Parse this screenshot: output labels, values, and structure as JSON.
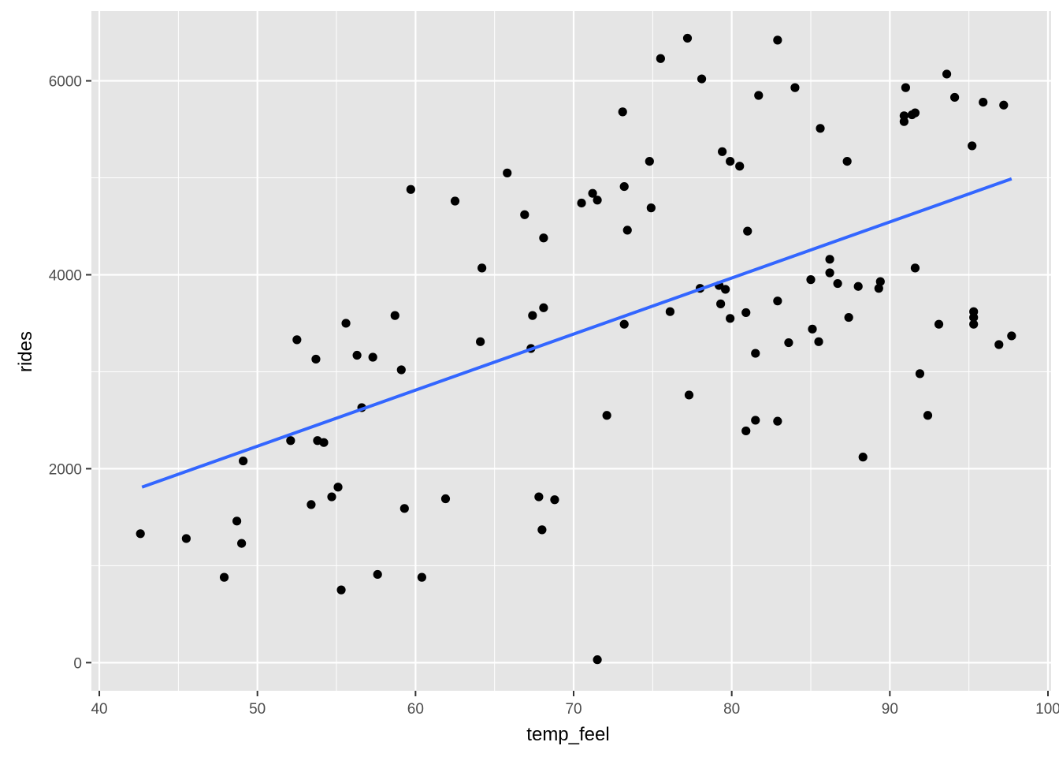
{
  "chart_data": {
    "type": "scatter",
    "title": "",
    "xlabel": "temp_feel",
    "ylabel": "rides",
    "xlim": [
      39.5,
      100.2
    ],
    "ylim": [
      -290,
      6720
    ],
    "x_ticks": [
      40,
      50,
      60,
      70,
      80,
      90,
      100
    ],
    "y_ticks": [
      0,
      2000,
      4000,
      6000
    ],
    "grid": true,
    "legend": "none",
    "colors": {
      "panel": "#E5E5E5",
      "grid": "#FFFFFF",
      "points": "#000000",
      "trend": "#3366FF",
      "tick_text": "#4D4D4D"
    },
    "trend_line": {
      "method": "linear",
      "x": [
        42.7,
        97.7
      ],
      "y": [
        1810,
        4990
      ]
    },
    "points": [
      {
        "x": 42.6,
        "y": 1330
      },
      {
        "x": 45.5,
        "y": 1280
      },
      {
        "x": 47.9,
        "y": 880
      },
      {
        "x": 48.7,
        "y": 1460
      },
      {
        "x": 49.0,
        "y": 1230
      },
      {
        "x": 49.1,
        "y": 2080
      },
      {
        "x": 52.1,
        "y": 2290
      },
      {
        "x": 52.5,
        "y": 3330
      },
      {
        "x": 53.4,
        "y": 1630
      },
      {
        "x": 53.7,
        "y": 3130
      },
      {
        "x": 53.8,
        "y": 2290
      },
      {
        "x": 54.2,
        "y": 2270
      },
      {
        "x": 54.7,
        "y": 1710
      },
      {
        "x": 55.1,
        "y": 1810
      },
      {
        "x": 55.3,
        "y": 750
      },
      {
        "x": 55.6,
        "y": 3500
      },
      {
        "x": 56.3,
        "y": 3170
      },
      {
        "x": 56.6,
        "y": 2630
      },
      {
        "x": 57.3,
        "y": 3150
      },
      {
        "x": 57.6,
        "y": 910
      },
      {
        "x": 58.7,
        "y": 3580
      },
      {
        "x": 59.1,
        "y": 3020
      },
      {
        "x": 59.3,
        "y": 1590
      },
      {
        "x": 59.7,
        "y": 4880
      },
      {
        "x": 60.4,
        "y": 880
      },
      {
        "x": 61.9,
        "y": 1690
      },
      {
        "x": 62.5,
        "y": 4760
      },
      {
        "x": 64.1,
        "y": 3310
      },
      {
        "x": 64.2,
        "y": 4070
      },
      {
        "x": 65.8,
        "y": 5050
      },
      {
        "x": 66.9,
        "y": 4620
      },
      {
        "x": 67.3,
        "y": 3240
      },
      {
        "x": 67.4,
        "y": 3580
      },
      {
        "x": 67.8,
        "y": 1710
      },
      {
        "x": 68.0,
        "y": 1370
      },
      {
        "x": 68.1,
        "y": 3660
      },
      {
        "x": 68.1,
        "y": 4380
      },
      {
        "x": 68.8,
        "y": 1680
      },
      {
        "x": 70.5,
        "y": 4740
      },
      {
        "x": 71.2,
        "y": 4840
      },
      {
        "x": 71.5,
        "y": 4770
      },
      {
        "x": 71.5,
        "y": 30
      },
      {
        "x": 72.1,
        "y": 2550
      },
      {
        "x": 73.1,
        "y": 5680
      },
      {
        "x": 73.2,
        "y": 3490
      },
      {
        "x": 73.2,
        "y": 4910
      },
      {
        "x": 73.4,
        "y": 4460
      },
      {
        "x": 74.8,
        "y": 5170
      },
      {
        "x": 74.9,
        "y": 4690
      },
      {
        "x": 75.5,
        "y": 6230
      },
      {
        "x": 76.1,
        "y": 3620
      },
      {
        "x": 77.2,
        "y": 6440
      },
      {
        "x": 77.3,
        "y": 2760
      },
      {
        "x": 78.0,
        "y": 3860
      },
      {
        "x": 78.1,
        "y": 6020
      },
      {
        "x": 79.2,
        "y": 3890
      },
      {
        "x": 79.3,
        "y": 3700
      },
      {
        "x": 79.4,
        "y": 5270
      },
      {
        "x": 79.6,
        "y": 3850
      },
      {
        "x": 79.9,
        "y": 3550
      },
      {
        "x": 79.9,
        "y": 5170
      },
      {
        "x": 80.5,
        "y": 5120
      },
      {
        "x": 80.9,
        "y": 2390
      },
      {
        "x": 80.9,
        "y": 3610
      },
      {
        "x": 81.0,
        "y": 4450
      },
      {
        "x": 81.5,
        "y": 2500
      },
      {
        "x": 81.5,
        "y": 3190
      },
      {
        "x": 81.7,
        "y": 5850
      },
      {
        "x": 82.9,
        "y": 3730
      },
      {
        "x": 82.9,
        "y": 2490
      },
      {
        "x": 82.9,
        "y": 6420
      },
      {
        "x": 83.6,
        "y": 3300
      },
      {
        "x": 84.0,
        "y": 5930
      },
      {
        "x": 85.0,
        "y": 3950
      },
      {
        "x": 85.1,
        "y": 3440
      },
      {
        "x": 85.5,
        "y": 3310
      },
      {
        "x": 85.6,
        "y": 5510
      },
      {
        "x": 86.2,
        "y": 4160
      },
      {
        "x": 86.2,
        "y": 4020
      },
      {
        "x": 86.7,
        "y": 3910
      },
      {
        "x": 87.3,
        "y": 5170
      },
      {
        "x": 87.4,
        "y": 3560
      },
      {
        "x": 88.0,
        "y": 3880
      },
      {
        "x": 88.3,
        "y": 2120
      },
      {
        "x": 89.3,
        "y": 3860
      },
      {
        "x": 89.4,
        "y": 3930
      },
      {
        "x": 90.9,
        "y": 5640
      },
      {
        "x": 90.9,
        "y": 5580
      },
      {
        "x": 91.0,
        "y": 5930
      },
      {
        "x": 91.4,
        "y": 5650
      },
      {
        "x": 91.6,
        "y": 5670
      },
      {
        "x": 91.6,
        "y": 4070
      },
      {
        "x": 91.9,
        "y": 2980
      },
      {
        "x": 92.4,
        "y": 2550
      },
      {
        "x": 93.1,
        "y": 3490
      },
      {
        "x": 93.6,
        "y": 6070
      },
      {
        "x": 94.1,
        "y": 5830
      },
      {
        "x": 95.2,
        "y": 5330
      },
      {
        "x": 95.3,
        "y": 3620
      },
      {
        "x": 95.3,
        "y": 3490
      },
      {
        "x": 95.3,
        "y": 3560
      },
      {
        "x": 95.9,
        "y": 5780
      },
      {
        "x": 96.9,
        "y": 3280
      },
      {
        "x": 97.2,
        "y": 5750
      },
      {
        "x": 97.7,
        "y": 3370
      }
    ]
  }
}
